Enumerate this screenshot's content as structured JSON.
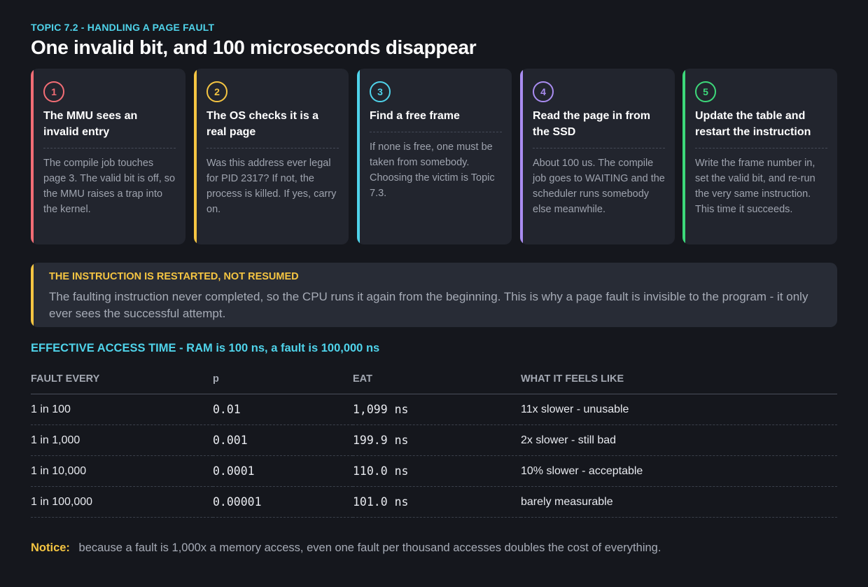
{
  "header": {
    "topic": "TOPIC 7.2  -  HANDLING A PAGE FAULT",
    "title": "One invalid bit, and 100 microseconds disappear"
  },
  "steps": [
    {
      "number": "1",
      "color": "#f26d75",
      "title": "The MMU sees an invalid entry",
      "body": "The compile job touches page 3. The valid bit is off, so the MMU raises a trap into the kernel."
    },
    {
      "number": "2",
      "color": "#f5c542",
      "title": "The OS checks it is a real page",
      "body": "Was this address ever legal for PID 2317? If not, the process is killed. If yes, carry on."
    },
    {
      "number": "3",
      "color": "#4fd3ea",
      "title": "Find a free frame",
      "body": "If none is free, one must be taken from somebody. Choosing the victim is Topic 7.3."
    },
    {
      "number": "4",
      "color": "#a98cf0",
      "title": "Read the page in from the SSD",
      "body": "About 100 us. The compile job goes to WAITING and the scheduler runs somebody else meanwhile."
    },
    {
      "number": "5",
      "color": "#3dd87a",
      "title": "Update the table and restart the instruction",
      "body": "Write the frame number in, set the valid bit, and re-run the very same instruction. This time it succeeds."
    }
  ],
  "callout": {
    "heading": "THE INSTRUCTION IS RESTARTED, NOT RESUMED",
    "text": "The faulting instruction never completed, so the CPU runs it again from the beginning. This is why a page fault is invisible to the program - it only ever sees the successful attempt."
  },
  "eat": {
    "title": "EFFECTIVE ACCESS TIME  -  RAM is 100 ns, a fault is 100,000 ns",
    "columns": [
      "FAULT EVERY",
      "p",
      "EAT",
      "WHAT IT FEELS LIKE"
    ],
    "rows": [
      [
        "1 in 100",
        "0.01",
        "1,099 ns",
        "11x slower - unusable"
      ],
      [
        "1 in 1,000",
        "0.001",
        "199.9 ns",
        "2x slower - still bad"
      ],
      [
        "1 in 10,000",
        "0.0001",
        "110.0 ns",
        "10% slower - acceptable"
      ],
      [
        "1 in 100,000",
        "0.00001",
        "101.0 ns",
        "barely measurable"
      ]
    ]
  },
  "notice": {
    "label": "Notice:",
    "text": "because a fault is 1,000x a memory access, even one fault per thousand accesses doubles the cost of everything."
  }
}
